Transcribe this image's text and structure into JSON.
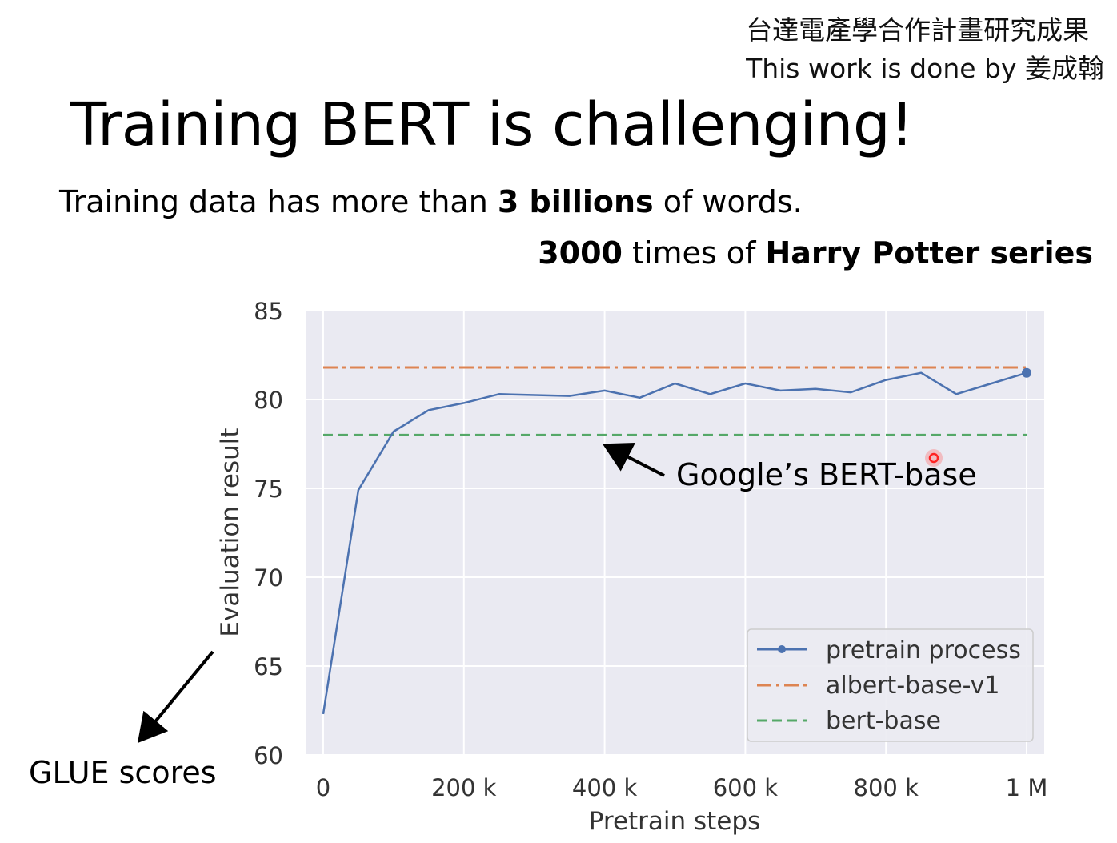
{
  "header": {
    "credit_line1": "台達電產學合作計畫研究成果",
    "credit_line2": "This work is done by 姜成翰"
  },
  "slide": {
    "title": "Training BERT is challenging!",
    "fact_line1": {
      "pre": "Training data has more than ",
      "bold": "3 billions",
      "post": " of words."
    },
    "fact_line2": {
      "bold1": "3000",
      "mid": " times of ",
      "bold2": "Harry Potter series"
    }
  },
  "annotations": {
    "glue_label": "GLUE scores",
    "bert_label": "Google’s BERT-base"
  },
  "colors": {
    "plot_bg": "#eaeaf2",
    "grid": "#ffffff",
    "pretrain": "#4c72b0",
    "albert": "#dd8452",
    "bert": "#55a868",
    "cursor": "#ff2222"
  },
  "chart_data": {
    "type": "line",
    "xlabel": "Pretrain steps",
    "ylabel": "Evaluation result",
    "xlim": [
      -25000,
      1025000
    ],
    "ylim": [
      60,
      85
    ],
    "xticks": [
      0,
      200000,
      400000,
      600000,
      800000,
      1000000
    ],
    "xtick_labels": [
      "0",
      "200 k",
      "400 k",
      "600 k",
      "800 k",
      "1 M"
    ],
    "yticks": [
      60,
      65,
      70,
      75,
      80,
      85
    ],
    "ytick_labels": [
      "60",
      "65",
      "70",
      "75",
      "80",
      "85"
    ],
    "grid": true,
    "legend_position": "lower-right",
    "series": [
      {
        "name": "pretrain process",
        "style": "solid",
        "x": [
          0,
          50000,
          100000,
          150000,
          200000,
          250000,
          350000,
          400000,
          450000,
          500000,
          550000,
          600000,
          650000,
          700000,
          750000,
          800000,
          850000,
          900000,
          950000,
          1000000
        ],
        "y": [
          62.3,
          74.9,
          78.2,
          79.4,
          79.8,
          80.3,
          80.2,
          80.5,
          80.1,
          80.9,
          80.3,
          80.9,
          80.5,
          80.6,
          80.4,
          81.1,
          81.5,
          80.3,
          80.9,
          81.5
        ]
      },
      {
        "name": "albert-base-v1",
        "style": "dashdot",
        "constant": 81.8
      },
      {
        "name": "bert-base",
        "style": "dashed",
        "constant": 78.0
      }
    ]
  }
}
